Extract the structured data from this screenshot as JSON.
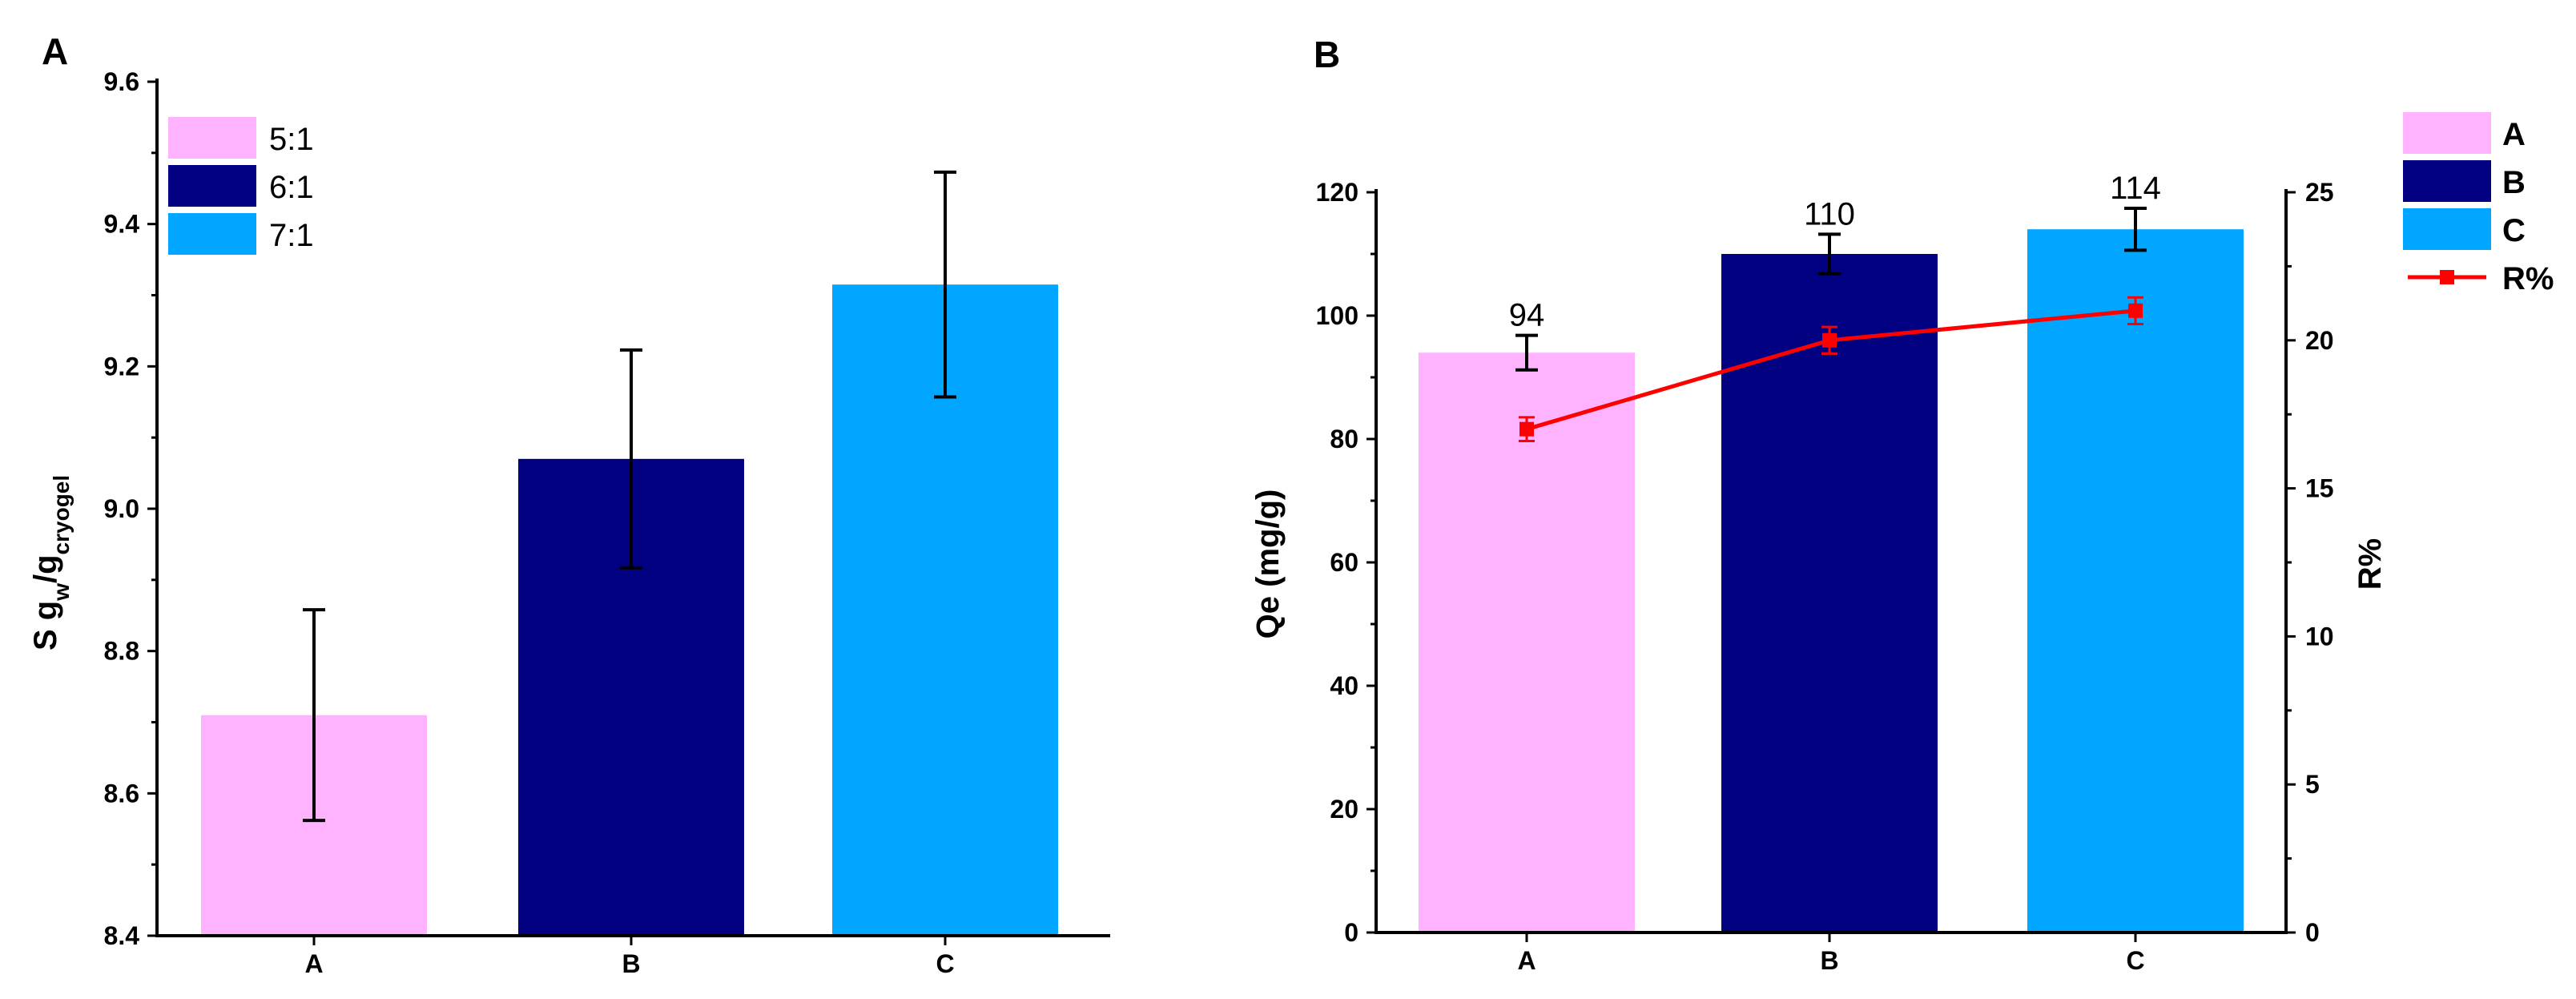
{
  "chart_data": [
    {
      "panel": "A",
      "type": "bar",
      "title": "",
      "categories": [
        "A",
        "B",
        "C"
      ],
      "values": [
        8.71,
        9.07,
        9.315
      ],
      "errors": [
        0.148,
        0.153,
        0.158
      ],
      "colors": [
        "#FFB3FF",
        "#000080",
        "#00A6FF"
      ],
      "ylabel": "S g_w/g_cryogel",
      "ylabel_parts": {
        "pre": "S g",
        "sub1": "w",
        "mid": "/g",
        "sub2": "cryogel"
      },
      "xlabel": "",
      "ylim": [
        8.4,
        9.6
      ],
      "yticks": [
        "8.4",
        "8.6",
        "8.8",
        "9.0",
        "9.2",
        "9.4",
        "9.6"
      ],
      "legend": [
        "5:1",
        "6:1",
        "7:1"
      ],
      "legend_position": "top-left",
      "grid": false
    },
    {
      "panel": "B",
      "type": "bar",
      "title": "",
      "categories": [
        "A",
        "B",
        "C"
      ],
      "values": [
        94,
        110,
        114
      ],
      "errors": [
        2.8,
        3.2,
        3.4
      ],
      "data_labels": [
        "94",
        "110",
        "114"
      ],
      "colors": [
        "#FFB3FF",
        "#000080",
        "#00A6FF"
      ],
      "ylabel": "Qe (mg/g)",
      "ylim": [
        0,
        120
      ],
      "yticks": [
        "0",
        "20",
        "40",
        "60",
        "80",
        "100",
        "120"
      ],
      "secondary_series": {
        "name": "R%",
        "type": "line",
        "color": "#FF0000",
        "values": [
          17.0,
          20.0,
          21.0
        ],
        "errors": [
          0.4,
          0.45,
          0.45
        ],
        "ylabel": "R%",
        "ylim": [
          0,
          25
        ],
        "yticks": [
          "0",
          "5",
          "10",
          "15",
          "20",
          "25"
        ]
      },
      "legend": [
        "A",
        "B",
        "C",
        "R%"
      ],
      "legend_position": "top-right",
      "grid": false
    }
  ],
  "panel_labels": [
    "A",
    "B"
  ]
}
